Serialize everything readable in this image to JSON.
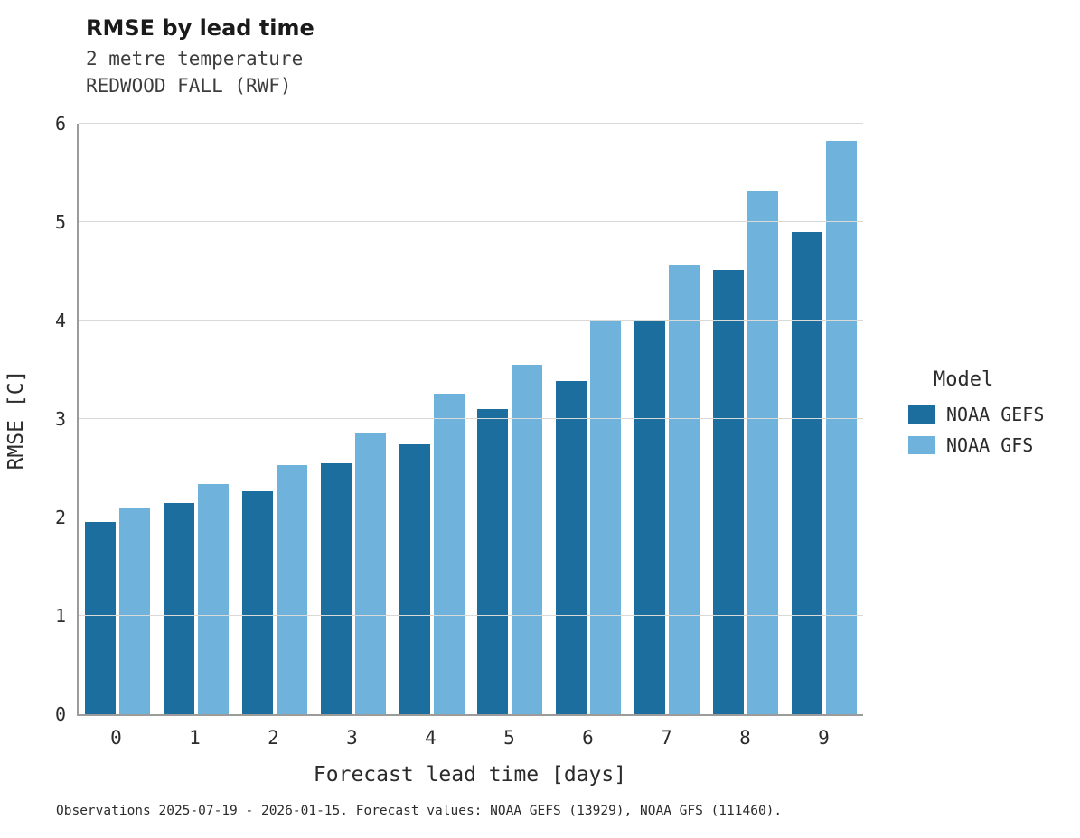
{
  "header": {
    "title": "RMSE by lead time",
    "subtitle_line1": "2 metre temperature",
    "subtitle_line2": "REDWOOD FALL (RWF)"
  },
  "chart_data": {
    "type": "bar",
    "title": "RMSE by lead time",
    "subtitle": "2 metre temperature / REDWOOD FALL (RWF)",
    "categories": [
      "0",
      "1",
      "2",
      "3",
      "4",
      "5",
      "6",
      "7",
      "8",
      "9"
    ],
    "series": [
      {
        "name": "NOAA GEFS",
        "color": "#1c6e9f",
        "values": [
          1.95,
          2.15,
          2.27,
          2.55,
          2.74,
          3.1,
          3.39,
          4.01,
          4.51,
          4.9
        ]
      },
      {
        "name": "NOAA GFS",
        "color": "#6fb3dc",
        "values": [
          2.09,
          2.34,
          2.53,
          2.85,
          3.26,
          3.55,
          3.99,
          4.56,
          5.32,
          5.83
        ]
      }
    ],
    "xlabel": "Forecast lead time [days]",
    "ylabel": "RMSE [C]",
    "ylim": [
      0,
      6
    ],
    "yticks": [
      0,
      1,
      2,
      3,
      4,
      5,
      6
    ],
    "legend_title": "Model",
    "legend_position": "right",
    "grid": "horizontal"
  },
  "caption": "Observations 2025-07-19 - 2026-01-15. Forecast values: NOAA GEFS (13929), NOAA GFS (111460)."
}
